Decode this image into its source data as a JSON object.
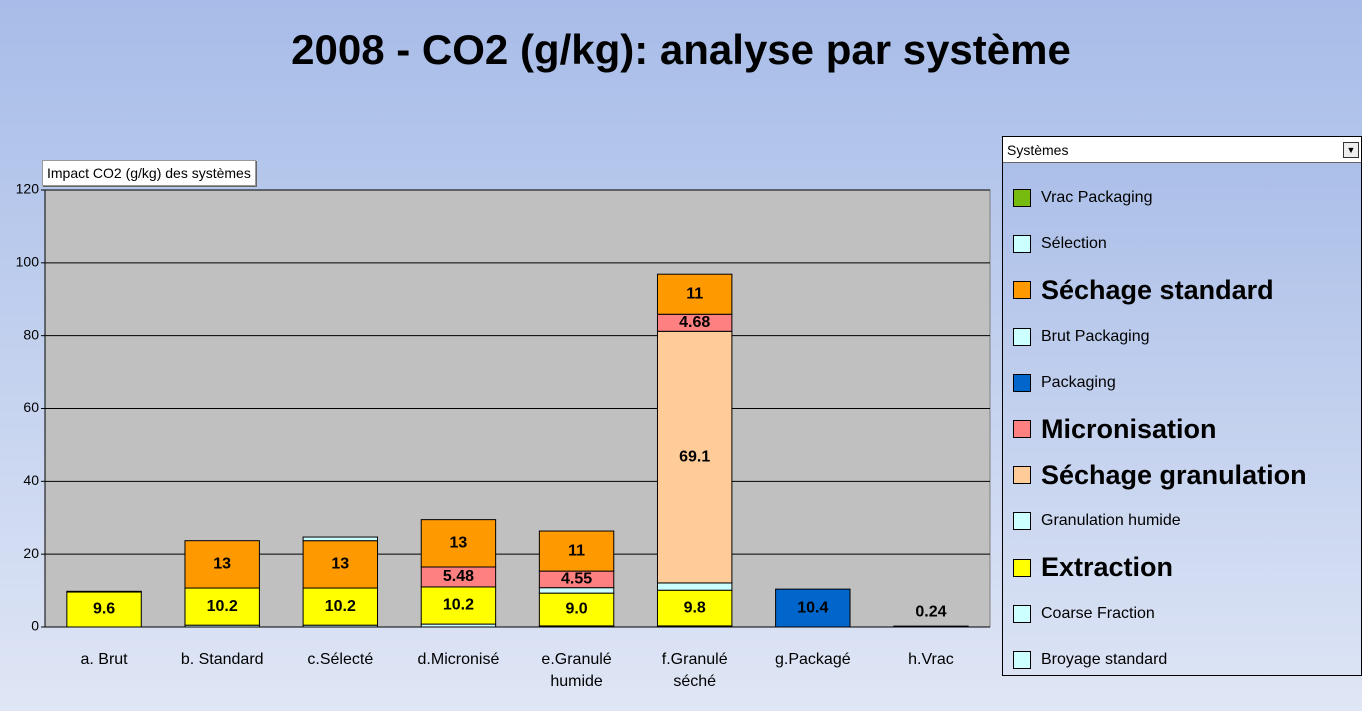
{
  "chart_data": {
    "type": "stacked_bar",
    "title": "2008 - CO2 (g/kg): analyse par système",
    "field_button": "Impact CO2 (g/kg) des systèmes",
    "legend_title": "Systèmes",
    "categories": [
      "a. Brut",
      "b. Standard",
      "c.Sélecté",
      "d.Micronisé",
      "e.Granulé humide",
      "f.Granulé séché",
      "g.Packagé",
      "h.Vrac"
    ],
    "ylim": [
      0,
      120
    ],
    "yticks": [
      0,
      20,
      40,
      60,
      80,
      100,
      120
    ],
    "grid": true,
    "legend": "right",
    "series": [
      {
        "name": "Vrac Packaging",
        "color": "#77bb11",
        "values": [
          null,
          null,
          null,
          null,
          null,
          null,
          null,
          0.24
        ],
        "value_labels": [
          null,
          null,
          null,
          null,
          null,
          null,
          null,
          "0.24"
        ]
      },
      {
        "name": "Sélection",
        "color": "#ccffff",
        "values": [
          null,
          null,
          1,
          null,
          null,
          null,
          null,
          null
        ]
      },
      {
        "name": "Séchage standard",
        "color": "#ff9900",
        "legend_bold": true,
        "values": [
          null,
          13,
          13,
          13,
          11,
          11,
          null,
          null
        ],
        "value_labels": [
          null,
          "13",
          "13",
          "13",
          "11",
          "11",
          null,
          null
        ]
      },
      {
        "name": "Brut Packaging",
        "color": "#ccffff",
        "values": [
          0.2,
          null,
          null,
          null,
          null,
          null,
          null,
          null
        ]
      },
      {
        "name": "Packaging",
        "color": "#0066cc",
        "values": [
          null,
          null,
          null,
          null,
          null,
          null,
          10.4,
          null
        ],
        "value_labels": [
          null,
          null,
          null,
          null,
          null,
          null,
          "10.4",
          null
        ]
      },
      {
        "name": "Micronisation",
        "color": "#ff8080",
        "legend_bold": true,
        "values": [
          null,
          null,
          null,
          5.48,
          4.55,
          4.68,
          null,
          null
        ],
        "value_labels": [
          null,
          null,
          null,
          "5.48",
          "4.55",
          "4.68",
          null,
          null
        ]
      },
      {
        "name": "Séchage granulation",
        "color": "#ffcc99",
        "legend_bold": true,
        "values": [
          null,
          null,
          null,
          null,
          null,
          69.1,
          null,
          null
        ],
        "value_labels": [
          null,
          null,
          null,
          null,
          null,
          "69.1",
          null,
          null
        ]
      },
      {
        "name": "Granulation humide",
        "color": "#ccffff",
        "values": [
          null,
          null,
          null,
          null,
          1.5,
          2,
          null,
          null
        ]
      },
      {
        "name": "Extraction",
        "color": "#ffff00",
        "legend_bold": true,
        "values": [
          9.6,
          10.2,
          10.2,
          10.2,
          9.0,
          9.8,
          null,
          null
        ],
        "value_labels": [
          "9.6",
          "10.2",
          "10.2",
          "10.2",
          "9.0",
          "9.8",
          null,
          null
        ]
      },
      {
        "name": "Coarse Fraction",
        "color": "#ccffff",
        "values": [
          null,
          null,
          null,
          null,
          null,
          null,
          null,
          null
        ]
      },
      {
        "name": "Broyage standard",
        "color": "#ccffff",
        "values": [
          null,
          0.5,
          0.5,
          0.8,
          0.3,
          0.3,
          null,
          null
        ]
      }
    ]
  }
}
